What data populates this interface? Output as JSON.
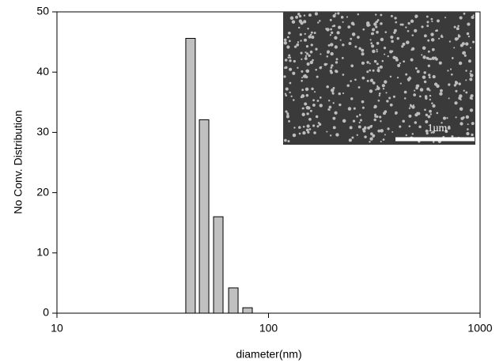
{
  "chart_data": {
    "type": "bar",
    "x": [
      42.8,
      49.6,
      57.9,
      68.2,
      79.6
    ],
    "values": [
      45.6,
      32.1,
      16.0,
      4.2,
      0.9
    ],
    "color": "#c0c0c0",
    "xlabel": "diameter(nm)",
    "ylabel": "No Conv. Distribution",
    "xscale": "log",
    "xlim": [
      10,
      1000
    ],
    "xticks": [
      10,
      100,
      1000
    ],
    "ylim": [
      0,
      50
    ],
    "yticks": [
      0,
      10,
      20,
      30,
      40,
      50
    ],
    "grid": false,
    "inset_label": "1um"
  }
}
